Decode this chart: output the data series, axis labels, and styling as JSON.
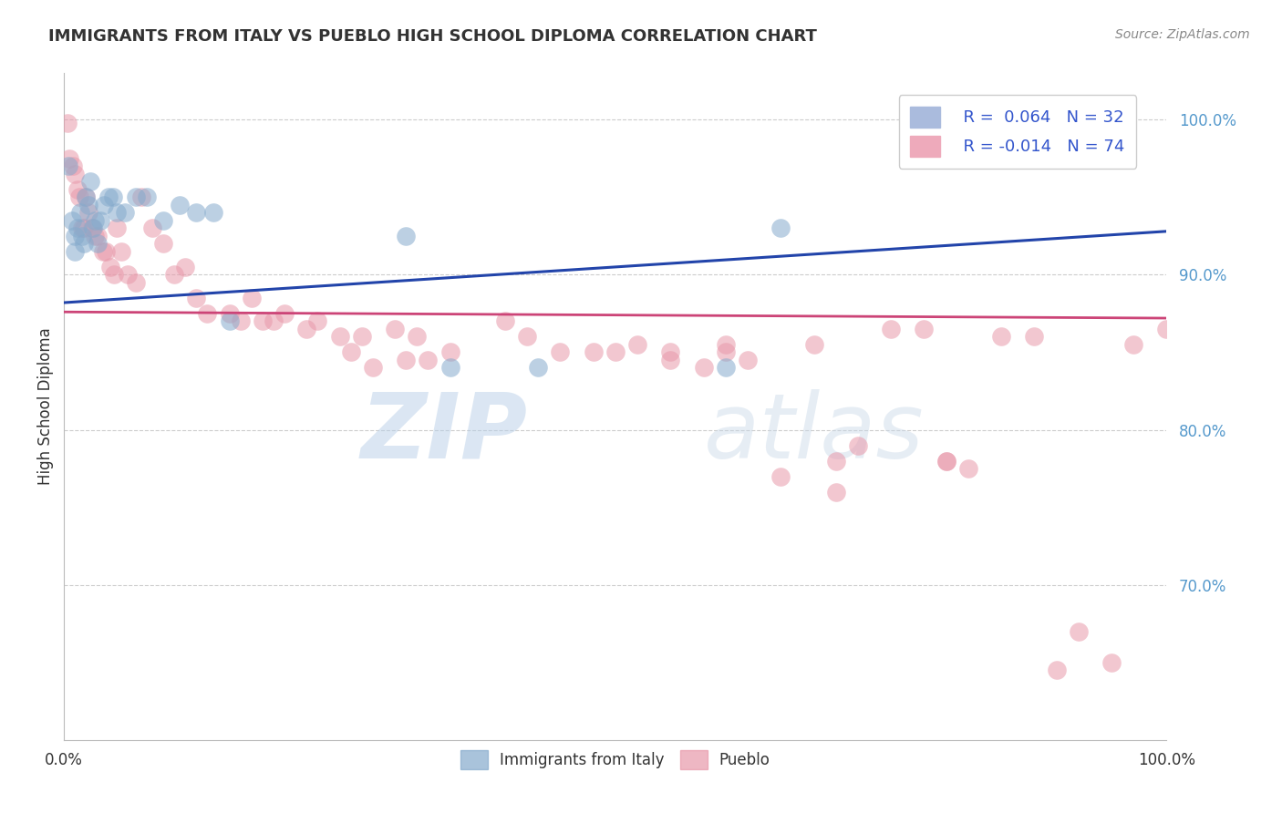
{
  "title": "IMMIGRANTS FROM ITALY VS PUEBLO HIGH SCHOOL DIPLOMA CORRELATION CHART",
  "source": "Source: ZipAtlas.com",
  "ylabel": "High School Diploma",
  "legend_blue_r": "R =  0.064",
  "legend_blue_n": "N = 32",
  "legend_pink_r": "R = -0.014",
  "legend_pink_n": "N = 74",
  "blue_x": [
    0.004,
    0.007,
    0.01,
    0.01,
    0.012,
    0.015,
    0.016,
    0.018,
    0.02,
    0.022,
    0.024,
    0.026,
    0.028,
    0.03,
    0.033,
    0.036,
    0.04,
    0.044,
    0.048,
    0.055,
    0.065,
    0.075,
    0.09,
    0.105,
    0.12,
    0.135,
    0.15,
    0.31,
    0.35,
    0.43,
    0.6,
    0.65
  ],
  "blue_y": [
    0.97,
    0.935,
    0.925,
    0.915,
    0.93,
    0.94,
    0.925,
    0.92,
    0.95,
    0.945,
    0.96,
    0.93,
    0.935,
    0.92,
    0.935,
    0.945,
    0.95,
    0.95,
    0.94,
    0.94,
    0.95,
    0.95,
    0.935,
    0.945,
    0.94,
    0.94,
    0.87,
    0.925,
    0.84,
    0.84,
    0.84,
    0.93
  ],
  "pink_x": [
    0.003,
    0.005,
    0.008,
    0.01,
    0.012,
    0.014,
    0.016,
    0.018,
    0.02,
    0.022,
    0.025,
    0.028,
    0.03,
    0.035,
    0.038,
    0.042,
    0.045,
    0.048,
    0.052,
    0.058,
    0.065,
    0.07,
    0.08,
    0.09,
    0.1,
    0.11,
    0.12,
    0.13,
    0.15,
    0.16,
    0.18,
    0.2,
    0.22,
    0.25,
    0.27,
    0.3,
    0.32,
    0.35,
    0.4,
    0.42,
    0.45,
    0.48,
    0.5,
    0.52,
    0.55,
    0.58,
    0.6,
    0.62,
    0.65,
    0.68,
    0.7,
    0.72,
    0.75,
    0.78,
    0.8,
    0.82,
    0.85,
    0.88,
    0.9,
    0.92,
    0.95,
    0.97,
    1.0,
    0.31,
    0.33,
    0.28,
    0.26,
    0.23,
    0.19,
    0.17,
    0.55,
    0.6,
    0.7,
    0.8
  ],
  "pink_y": [
    0.998,
    0.975,
    0.97,
    0.965,
    0.955,
    0.95,
    0.93,
    0.93,
    0.95,
    0.94,
    0.93,
    0.925,
    0.925,
    0.915,
    0.915,
    0.905,
    0.9,
    0.93,
    0.915,
    0.9,
    0.895,
    0.95,
    0.93,
    0.92,
    0.9,
    0.905,
    0.885,
    0.875,
    0.875,
    0.87,
    0.87,
    0.875,
    0.865,
    0.86,
    0.86,
    0.865,
    0.86,
    0.85,
    0.87,
    0.86,
    0.85,
    0.85,
    0.85,
    0.855,
    0.845,
    0.84,
    0.855,
    0.845,
    0.77,
    0.855,
    0.76,
    0.79,
    0.865,
    0.865,
    0.78,
    0.775,
    0.86,
    0.86,
    0.645,
    0.67,
    0.65,
    0.855,
    0.865,
    0.845,
    0.845,
    0.84,
    0.85,
    0.87,
    0.87,
    0.885,
    0.85,
    0.85,
    0.78,
    0.78
  ],
  "blue_line_y_start": 0.882,
  "blue_line_y_end": 0.928,
  "pink_line_y_start": 0.876,
  "pink_line_y_end": 0.872,
  "watermark_zip": "ZIP",
  "watermark_atlas": "atlas",
  "background_color": "#ffffff",
  "blue_color": "#85aacc",
  "pink_color": "#e899aa",
  "blue_line_color": "#2244aa",
  "pink_line_color": "#cc4477",
  "grid_color": "#cccccc",
  "title_color": "#333333",
  "source_color": "#888888",
  "ytick_color": "#5599cc",
  "xlim": [
    0.0,
    1.0
  ],
  "ylim": [
    0.6,
    1.03
  ],
  "ytick_vals": [
    1.0,
    0.9,
    0.8,
    0.7
  ],
  "ytick_labels": [
    "100.0%",
    "90.0%",
    "80.0%",
    "70.0%"
  ]
}
